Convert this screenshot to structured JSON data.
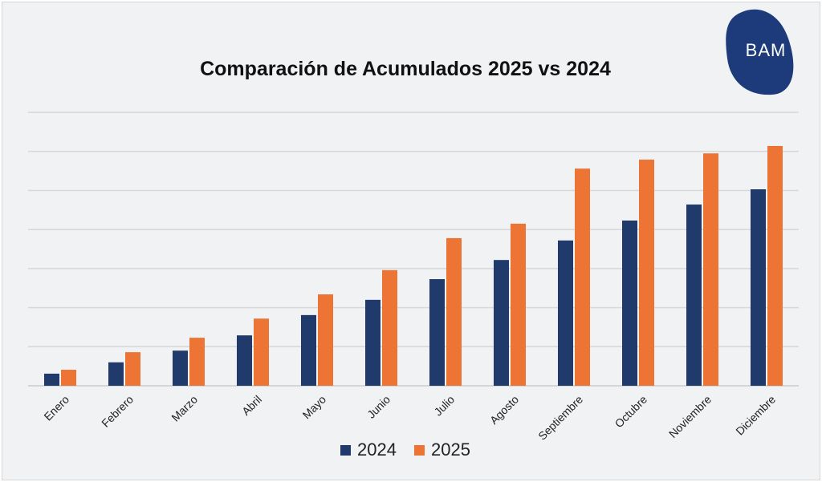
{
  "chart_data": {
    "type": "bar",
    "title": "Comparación de Acumulados 2025 vs 2024",
    "xlabel": "",
    "ylabel": "",
    "categories": [
      "Enero",
      "Febrero",
      "Marzo",
      "Abril",
      "Mayo",
      "Junio",
      "Julio",
      "Agosto",
      "Septiembre",
      "Octubre",
      "Noviembre",
      "Diciembre"
    ],
    "series": [
      {
        "name": "2024",
        "color": "#1f3a6b",
        "values": [
          0.31,
          0.6,
          0.9,
          1.29,
          1.81,
          2.2,
          2.73,
          3.22,
          3.72,
          4.23,
          4.64,
          5.03
        ]
      },
      {
        "name": "2025",
        "color": "#ec7535",
        "values": [
          0.41,
          0.86,
          1.23,
          1.72,
          2.34,
          2.96,
          3.78,
          4.15,
          5.56,
          5.79,
          5.95,
          6.14
        ]
      }
    ],
    "ylim": [
      0,
      7
    ],
    "grid": true,
    "legend": "bottom-center"
  },
  "logo": {
    "text": "BAM"
  }
}
